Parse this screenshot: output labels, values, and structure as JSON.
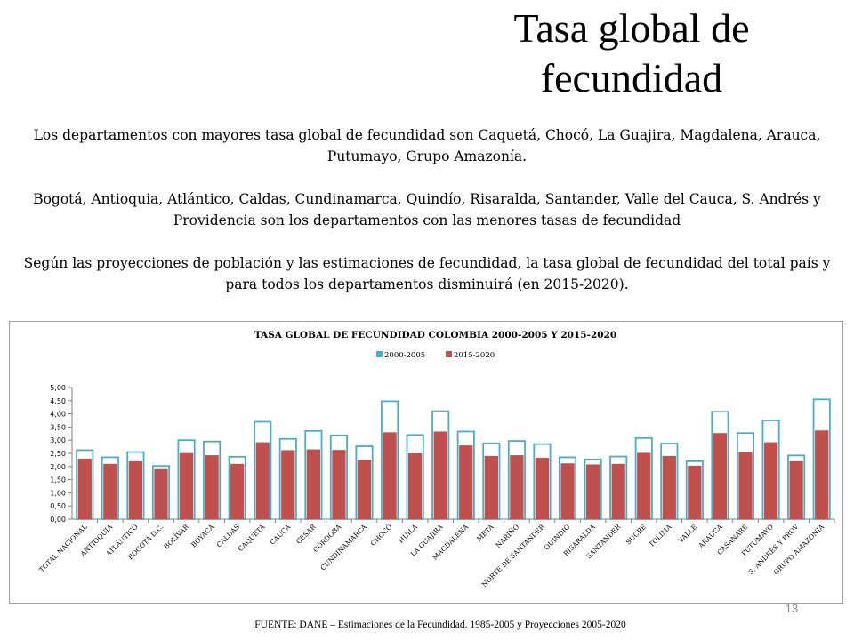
{
  "slide": {
    "title_line1": "Tasa global de",
    "title_line2": "fecundidad",
    "paragraphs": [
      "Los departamentos con mayores tasa global de fecundidad son Caquetá, Chocó, La Guajira, Magdalena, Arauca, Putumayo, Grupo Amazonía.",
      "Bogotá, Antioquia, Atlántico, Caldas, Cundinamarca, Quindío, Risaralda, Santander, Valle del Cauca, S. Andrés y Providencia son los departamentos con las menores tasas de fecundidad",
      "Según las proyecciones de población y las estimaciones de fecundidad, la tasa global de fecundidad del total país y para todos los departamentos disminuirá (en 2015-2020)."
    ],
    "page_number": "13",
    "source": "FUENTE: DANE –  Estimaciones de la Fecundidad. 1985-2005  y Proyecciones 2005-2020"
  },
  "chart_data": {
    "type": "bar",
    "title": "TASA GLOBAL DE FECUNDIDAD COLOMBIA 2000-2005 Y 2015-2020",
    "legend_position": "top",
    "grid": false,
    "ylim": [
      0,
      5
    ],
    "yticks": [
      "0,00",
      "0,50",
      "1,00",
      "1,50",
      "2,00",
      "2,50",
      "3,00",
      "3,50",
      "4,00",
      "4,50",
      "5,00"
    ],
    "categories": [
      "TOTAL NACIONAL",
      "ANTIOQUIA",
      "ATLÁNTICO",
      "BOGOTÁ D.C.",
      "BOLÍVAR",
      "BOYACÁ",
      "CALDAS",
      "CAQUETÁ",
      "CAUCA",
      "CESAR",
      "CÓRDOBA",
      "CUNDINAMARCA",
      "CHOCÓ",
      "HUILA",
      "LA GUAJIRA",
      "MAGDALENA",
      "META",
      "NARIÑO",
      "NORTE DE SANTANDER",
      "QUINDIO",
      "RISARALDA",
      "SANTANDER",
      "SUCRE",
      "TOLIMA",
      "VALLE",
      "ARAUCA",
      "CASANARE",
      "PUTUMAYO",
      "S. ANDRÉS Y PROV",
      "GRUPO AMAZONIA"
    ],
    "series": [
      {
        "name": "2000-2005",
        "color": "#4bacc6",
        "values": [
          2.62,
          2.35,
          2.55,
          2.02,
          3.0,
          2.95,
          2.37,
          3.7,
          3.05,
          3.35,
          3.18,
          2.77,
          4.48,
          3.2,
          4.1,
          3.33,
          2.88,
          2.97,
          2.85,
          2.35,
          2.27,
          2.38,
          3.08,
          2.87,
          2.2,
          4.08,
          3.27,
          3.75,
          2.42,
          4.55
        ]
      },
      {
        "name": "2015-2020",
        "color": "#c0504d",
        "values": [
          2.3,
          2.1,
          2.2,
          1.9,
          2.51,
          2.43,
          2.1,
          2.92,
          2.62,
          2.65,
          2.63,
          2.25,
          3.3,
          2.5,
          3.33,
          2.8,
          2.4,
          2.43,
          2.33,
          2.12,
          2.08,
          2.1,
          2.52,
          2.4,
          2.03,
          3.27,
          2.55,
          2.92,
          2.2,
          3.37
        ]
      }
    ]
  }
}
